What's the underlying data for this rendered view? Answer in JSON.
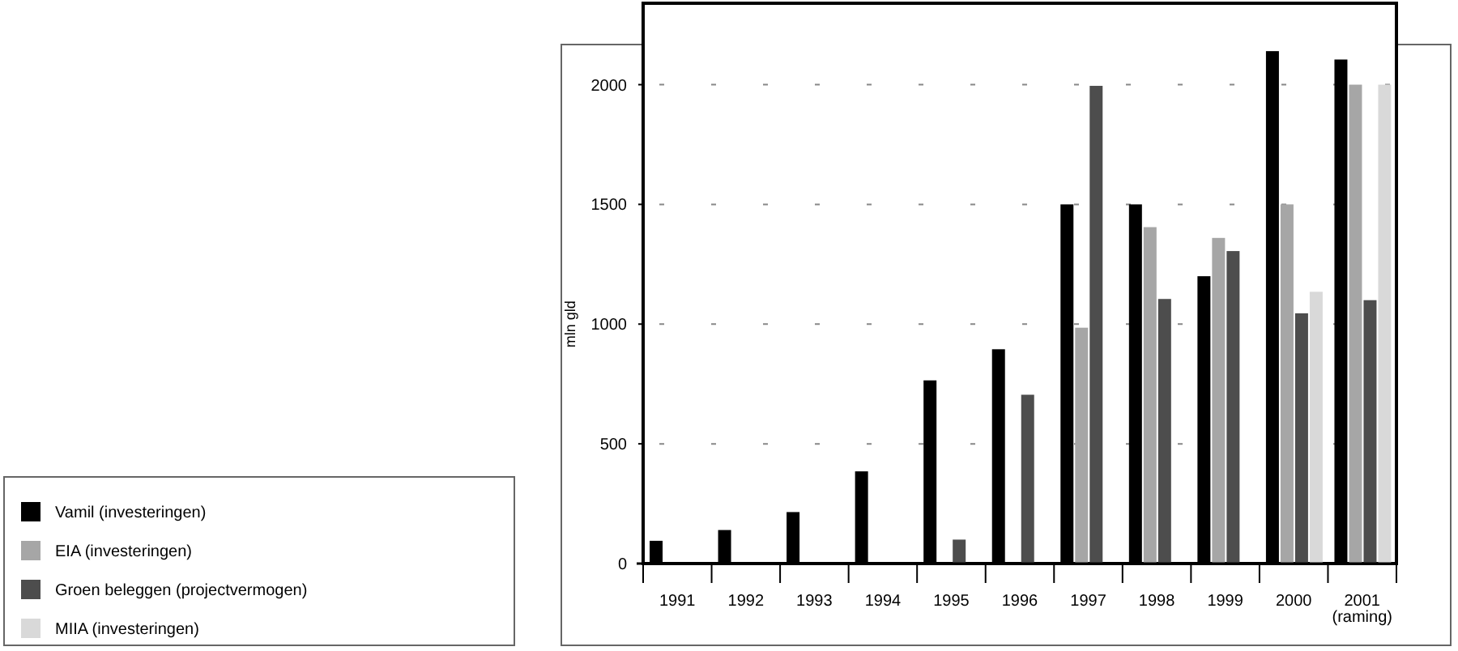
{
  "chart_data": {
    "type": "bar",
    "ylabel": "mln gld",
    "categories": [
      "1991",
      "1992",
      "1993",
      "1994",
      "1995",
      "1996",
      "1997",
      "1998",
      "1999",
      "2000",
      "2001\n(raming)"
    ],
    "series": [
      {
        "name": "Vamil (investeringen)",
        "color": "#000000",
        "values": [
          95,
          140,
          215,
          385,
          765,
          895,
          1500,
          1500,
          1200,
          2140,
          2105
        ]
      },
      {
        "name": "EIA (investeringen)",
        "color": "#a6a6a6",
        "values": [
          null,
          null,
          null,
          null,
          null,
          null,
          985,
          1405,
          1360,
          1500,
          2000
        ]
      },
      {
        "name": "Groen beleggen (projectvermogen)",
        "color": "#4d4d4d",
        "values": [
          null,
          null,
          null,
          null,
          100,
          705,
          1995,
          1105,
          1305,
          1045,
          1100
        ]
      },
      {
        "name": "MIIA (investeringen)",
        "color": "#d9d9d9",
        "values": [
          null,
          null,
          null,
          null,
          null,
          null,
          null,
          null,
          null,
          1135,
          2000
        ]
      }
    ],
    "ylim": [
      0,
      2340
    ],
    "yticks": [
      0,
      500,
      1000,
      1500,
      2000
    ],
    "grid": "y",
    "legend": "bottom left"
  }
}
